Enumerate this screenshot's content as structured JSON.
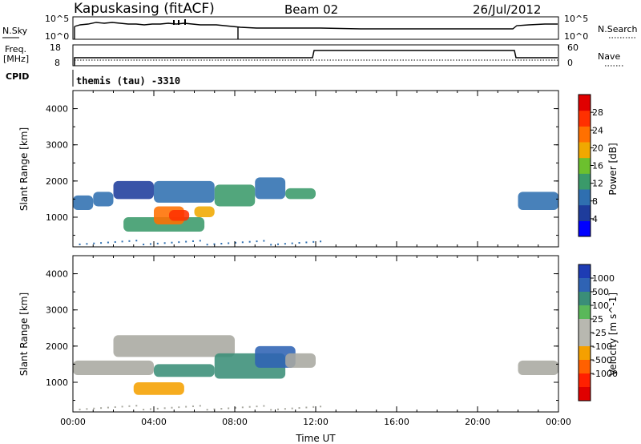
{
  "header": {
    "station": "Kapuskasing (fitACF)",
    "beam": "Beam 02",
    "date": "26/Jul/2012"
  },
  "top_panels": {
    "nsky": {
      "label": "N.Sky",
      "y_top": "10^5",
      "y_bottom": "10^0"
    },
    "nsearch": {
      "label": "N.Search",
      "y_top": "10^5",
      "y_bottom": "10^0"
    },
    "freq": {
      "label_line1": "Freq.",
      "label_line2": "[MHz]",
      "y_top": "18",
      "y_bottom": "8"
    },
    "nave": {
      "label": "Nave",
      "y_top": "60",
      "y_bottom": "0"
    },
    "cpid": {
      "label": "CPID",
      "program": "themis (tau) -3310"
    }
  },
  "colors": {
    "power_scale": [
      "#0000ff",
      "#1e3c9c",
      "#2f6fb0",
      "#3a9a6a",
      "#6cc02e",
      "#f0a800",
      "#ff7000",
      "#ff3000",
      "#e00000"
    ],
    "velocity_scale": [
      "#1e3cb4",
      "#2f63b4",
      "#3a8e78",
      "#5ab85a",
      "#b8b8b0",
      "#b8b8b0",
      "#f5a000",
      "#ff6000",
      "#ff2000",
      "#e00000"
    ],
    "ground": "#a8a8a0"
  },
  "chart_data": [
    {
      "type": "heatmap",
      "panel": "power",
      "ylabel": "Slant Range [km]",
      "ylim": [
        180,
        4500
      ],
      "y_ticks": [
        "1000",
        "2000",
        "3000",
        "4000"
      ],
      "xlim": [
        "00:00",
        "24:00"
      ],
      "colorbar": {
        "label": "Power [dB]",
        "range": [
          0,
          32
        ],
        "tick_labels": [
          "4",
          "8",
          "12",
          "16",
          "20",
          "24",
          "28"
        ]
      },
      "echo_regions": [
        {
          "x_start": "00:00",
          "x_end": "01:00",
          "range_min": 1200,
          "range_max": 1600,
          "level_db": 9
        },
        {
          "x_start": "01:00",
          "x_end": "02:00",
          "range_min": 1300,
          "range_max": 1700,
          "level_db": 8
        },
        {
          "x_start": "02:00",
          "x_end": "04:00",
          "range_min": 1500,
          "range_max": 2000,
          "level_db": 7
        },
        {
          "x_start": "04:00",
          "x_end": "07:00",
          "range_min": 1400,
          "range_max": 2000,
          "level_db": 10
        },
        {
          "x_start": "07:00",
          "x_end": "09:00",
          "range_min": 1300,
          "range_max": 1900,
          "level_db": 12
        },
        {
          "x_start": "09:00",
          "x_end": "10:30",
          "range_min": 1500,
          "range_max": 2100,
          "level_db": 11
        },
        {
          "x_start": "10:30",
          "x_end": "12:00",
          "range_min": 1500,
          "range_max": 1800,
          "level_db": 13
        },
        {
          "x_start": "02:30",
          "x_end": "06:30",
          "range_min": 600,
          "range_max": 1000,
          "level_db": 14
        },
        {
          "x_start": "04:00",
          "x_end": "05:30",
          "range_min": 800,
          "range_max": 1300,
          "level_db": 24
        },
        {
          "x_start": "04:45",
          "x_end": "05:45",
          "range_min": 900,
          "range_max": 1200,
          "level_db": 29
        },
        {
          "x_start": "06:00",
          "x_end": "07:00",
          "range_min": 1000,
          "range_max": 1300,
          "level_db": 20
        },
        {
          "x_start": "22:00",
          "x_end": "24:00",
          "range_min": 1200,
          "range_max": 1700,
          "level_db": 9
        }
      ],
      "x_tick_labels": [
        "00:00",
        "04:00",
        "08:00",
        "12:00",
        "16:00",
        "20:00",
        "00:00"
      ]
    },
    {
      "type": "heatmap",
      "panel": "velocity",
      "ylabel": "Slant Range [km]",
      "ylim": [
        180,
        4500
      ],
      "y_ticks": [
        "1000",
        "2000",
        "3000",
        "4000"
      ],
      "xlim": [
        "00:00",
        "24:00"
      ],
      "xlabel": "Time UT",
      "x_tick_labels": [
        "00:00",
        "04:00",
        "08:00",
        "12:00",
        "16:00",
        "20:00",
        "00:00"
      ],
      "colorbar": {
        "label": "Velocity [m s^-1]",
        "tick_labels": [
          "1000",
          "500",
          "100",
          "25",
          "-25",
          "-100",
          "-500",
          "-1000"
        ]
      },
      "echo_regions": [
        {
          "x_start": "00:00",
          "x_end": "04:00",
          "range_min": 1200,
          "range_max": 1600,
          "velocity_class": "ground"
        },
        {
          "x_start": "02:00",
          "x_end": "08:00",
          "range_min": 1700,
          "range_max": 2300,
          "velocity_class": "ground"
        },
        {
          "x_start": "03:00",
          "x_end": "05:30",
          "range_min": 650,
          "range_max": 1000,
          "velocity_class": "-100"
        },
        {
          "x_start": "04:00",
          "x_end": "07:00",
          "range_min": 1150,
          "range_max": 1500,
          "velocity_class": "100"
        },
        {
          "x_start": "07:00",
          "x_end": "10:30",
          "range_min": 1100,
          "range_max": 1800,
          "velocity_class": "100"
        },
        {
          "x_start": "09:00",
          "x_end": "11:00",
          "range_min": 1400,
          "range_max": 2000,
          "velocity_class": "500"
        },
        {
          "x_start": "10:30",
          "x_end": "12:00",
          "range_min": 1400,
          "range_max": 1800,
          "velocity_class": "ground"
        },
        {
          "x_start": "22:00",
          "x_end": "24:00",
          "range_min": 1200,
          "range_max": 1600,
          "velocity_class": "ground"
        }
      ]
    }
  ]
}
